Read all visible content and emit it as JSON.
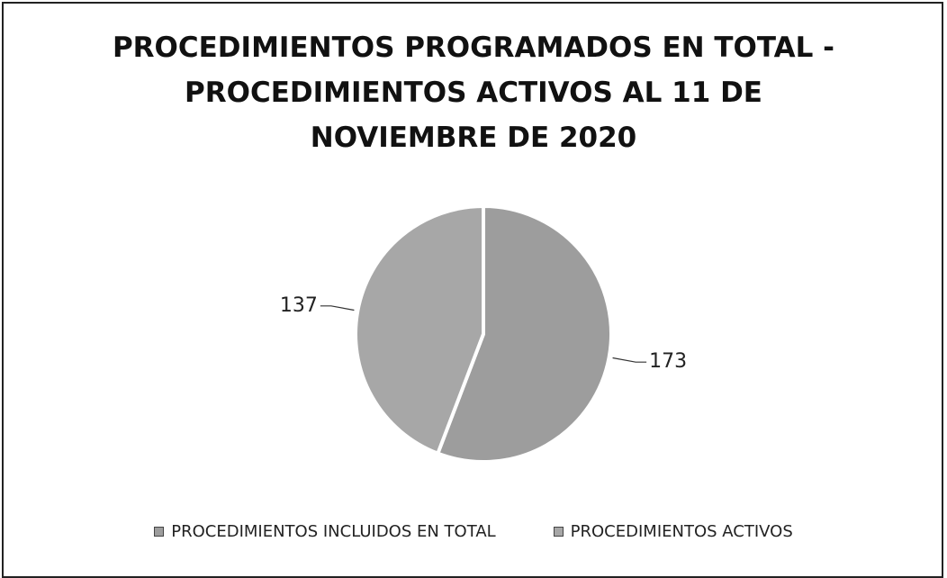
{
  "chart_data": {
    "type": "pie",
    "title": "PROCEDIMIENTOS PROGRAMADOS EN TOTAL - PROCEDIMIENTOS ACTIVOS AL 11 DE NOVIEMBRE DE 2020",
    "categories": [
      "PROCEDIMIENTOS INCLUIDOS EN TOTAL",
      "PROCEDIMIENTOS ACTIVOS"
    ],
    "values": [
      173,
      137
    ],
    "colors": [
      "#9d9d9d",
      "#a7a7a7"
    ],
    "legend": "bottom"
  }
}
